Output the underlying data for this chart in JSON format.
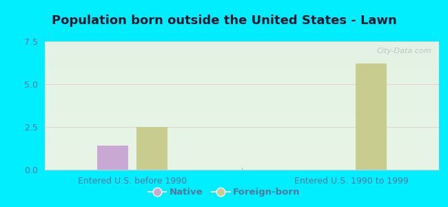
{
  "title": "Population born outside the United States - Lawn",
  "groups": [
    "Entered U.S. before 1990",
    "Entered U.S. 1990 to 1999"
  ],
  "native_values": [
    1.4,
    0.0
  ],
  "foreign_values": [
    2.5,
    6.2
  ],
  "native_color": "#c9a8d4",
  "foreign_color": "#c8cc8e",
  "background_color": "#00eeff",
  "plot_bg_top": "#e8f5e9",
  "plot_bg_bottom": "#f0faf0",
  "ylim": [
    0,
    7.5
  ],
  "yticks": [
    0,
    2.5,
    5,
    7.5
  ],
  "bar_width": 0.07,
  "watermark": "City-Data.com",
  "legend_native": "Native",
  "legend_foreign": "Foreign-born",
  "title_fontsize": 13,
  "tick_fontsize": 9,
  "xlabel_fontsize": 9,
  "grid_color": "#e8d0d0",
  "label_color": "#557799"
}
